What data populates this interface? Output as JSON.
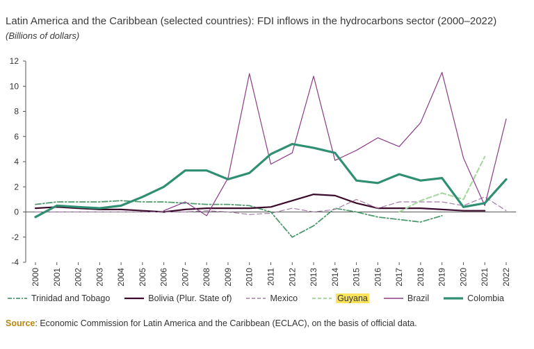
{
  "title": "Latin America and the Caribbean (selected countries): FDI inflows in the hydrocarbons sector (2000–2022)",
  "subtitle": "(Billions of dollars)",
  "source": {
    "label": "Source",
    "text": ":  Economic Commission for Latin America and the Caribbean (ECLAC), on the basis of official data."
  },
  "chart_data": {
    "type": "line",
    "categories": [
      "2000",
      "2001",
      "2002",
      "2003",
      "2004",
      "2005",
      "2006",
      "2007",
      "2008",
      "2009",
      "2010",
      "2011",
      "2012",
      "2013",
      "2014",
      "2015",
      "2016",
      "2017",
      "2018",
      "2019",
      "2020",
      "2021",
      "2022"
    ],
    "ylim": [
      -4,
      12
    ],
    "yticks": [
      -4,
      -2,
      0,
      2,
      4,
      6,
      8,
      10,
      12
    ],
    "grid": false,
    "legend_position": "bottom",
    "series": [
      {
        "name": "Trinidad and Tobago",
        "color": "#4e9a6e",
        "style": "dashdot",
        "width": 1.8,
        "values": [
          0.6,
          0.8,
          0.8,
          0.8,
          0.9,
          0.8,
          0.8,
          0.7,
          0.6,
          0.6,
          0.5,
          0.0,
          -2.0,
          -1.1,
          0.3,
          0.0,
          -0.4,
          -0.6,
          -0.8,
          -0.3,
          null,
          null,
          null
        ]
      },
      {
        "name": "Bolivia (Plur. State of)",
        "color": "#3a0a2a",
        "style": "solid",
        "width": 2.2,
        "values": [
          0.3,
          0.4,
          0.3,
          0.2,
          0.2,
          0.1,
          0.0,
          0.2,
          0.3,
          0.3,
          0.3,
          0.4,
          0.9,
          1.4,
          1.3,
          0.7,
          0.3,
          0.3,
          0.3,
          0.2,
          0.1,
          0.1,
          null
        ]
      },
      {
        "name": "Mexico",
        "color": "#a27aa6",
        "style": "dashed",
        "width": 1.2,
        "values": [
          0.0,
          0.0,
          0.0,
          0.0,
          0.0,
          0.0,
          0.0,
          0.0,
          0.1,
          0.0,
          -0.2,
          -0.1,
          0.3,
          0.0,
          0.2,
          1.0,
          0.3,
          0.8,
          0.8,
          0.8,
          0.5,
          1.2,
          0.1
        ]
      },
      {
        "name": "Guyana",
        "color": "#a9d8a0",
        "style": "dashed",
        "width": 2.2,
        "values": [
          null,
          null,
          null,
          null,
          null,
          null,
          null,
          null,
          null,
          null,
          null,
          null,
          null,
          null,
          null,
          null,
          null,
          0.0,
          0.9,
          1.5,
          1.0,
          4.4,
          null
        ]
      },
      {
        "name": "Brazil",
        "color": "#8b3b87",
        "style": "solid",
        "width": 1.2,
        "values": [
          null,
          null,
          null,
          null,
          null,
          null,
          0.1,
          0.8,
          -0.3,
          2.7,
          11.0,
          3.8,
          4.7,
          10.8,
          4.1,
          4.9,
          5.9,
          5.2,
          7.1,
          11.1,
          4.3,
          0.5,
          7.4
        ]
      },
      {
        "name": "Colombia",
        "color": "#2f8f72",
        "style": "solid",
        "width": 3.2,
        "values": [
          -0.4,
          0.5,
          0.4,
          0.3,
          0.5,
          1.2,
          2.0,
          3.3,
          3.3,
          2.6,
          3.1,
          4.6,
          5.4,
          5.1,
          4.7,
          2.5,
          2.3,
          3.0,
          2.5,
          2.7,
          0.4,
          0.7,
          2.6
        ]
      }
    ]
  }
}
